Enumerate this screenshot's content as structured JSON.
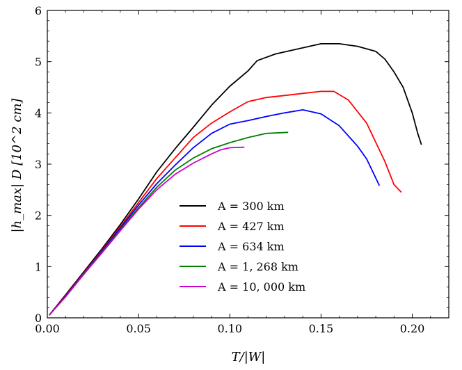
{
  "chart_data": {
    "type": "line",
    "xlabel": "T/|W|",
    "ylabel": "|h_max| D [10^2 cm]",
    "xlim": [
      0.0,
      0.22
    ],
    "ylim": [
      0,
      6
    ],
    "x_ticks": [
      "0.00",
      "0.05",
      "0.10",
      "0.15",
      "0.20"
    ],
    "x_tick_values": [
      0.0,
      0.05,
      0.1,
      0.15,
      0.2
    ],
    "y_ticks": [
      "0",
      "1",
      "2",
      "3",
      "4",
      "5",
      "6"
    ],
    "y_tick_values": [
      0,
      1,
      2,
      3,
      4,
      5,
      6
    ],
    "legend_position": "lower-center",
    "series": [
      {
        "name": "A = 300 km",
        "color": "#000000",
        "x": [
          0.001,
          0.01,
          0.02,
          0.03,
          0.04,
          0.05,
          0.06,
          0.07,
          0.08,
          0.09,
          0.1,
          0.11,
          0.115,
          0.125,
          0.14,
          0.15,
          0.16,
          0.17,
          0.18,
          0.185,
          0.19,
          0.195,
          0.2,
          0.203,
          0.205
        ],
        "values": [
          0.05,
          0.45,
          0.9,
          1.35,
          1.82,
          2.32,
          2.85,
          3.3,
          3.72,
          4.15,
          4.52,
          4.82,
          5.02,
          5.15,
          5.27,
          5.35,
          5.35,
          5.3,
          5.2,
          5.05,
          4.8,
          4.5,
          4.0,
          3.6,
          3.38
        ]
      },
      {
        "name": "A = 427 km",
        "color": "#ff0000",
        "x": [
          0.001,
          0.01,
          0.02,
          0.03,
          0.04,
          0.05,
          0.06,
          0.07,
          0.08,
          0.09,
          0.1,
          0.11,
          0.12,
          0.13,
          0.14,
          0.15,
          0.157,
          0.165,
          0.175,
          0.185,
          0.19,
          0.194
        ],
        "values": [
          0.05,
          0.43,
          0.88,
          1.32,
          1.78,
          2.25,
          2.72,
          3.12,
          3.52,
          3.8,
          4.02,
          4.22,
          4.3,
          4.34,
          4.38,
          4.42,
          4.42,
          4.25,
          3.8,
          3.05,
          2.6,
          2.45
        ]
      },
      {
        "name": "A = 634 km",
        "color": "#0000ff",
        "x": [
          0.001,
          0.01,
          0.02,
          0.03,
          0.04,
          0.05,
          0.06,
          0.07,
          0.08,
          0.09,
          0.1,
          0.11,
          0.12,
          0.13,
          0.14,
          0.15,
          0.16,
          0.17,
          0.175,
          0.182
        ],
        "values": [
          0.05,
          0.42,
          0.87,
          1.3,
          1.75,
          2.2,
          2.62,
          2.98,
          3.32,
          3.6,
          3.78,
          3.85,
          3.93,
          4.0,
          4.06,
          3.98,
          3.75,
          3.35,
          3.1,
          2.58
        ]
      },
      {
        "name": "A = 1, 268 km",
        "color": "#008000",
        "x": [
          0.001,
          0.01,
          0.02,
          0.03,
          0.04,
          0.05,
          0.06,
          0.07,
          0.08,
          0.09,
          0.1,
          0.11,
          0.12,
          0.132
        ],
        "values": [
          0.05,
          0.41,
          0.86,
          1.28,
          1.72,
          2.15,
          2.55,
          2.88,
          3.12,
          3.3,
          3.42,
          3.52,
          3.6,
          3.62
        ]
      },
      {
        "name": "A = 10, 000 km",
        "color": "#cc00cc",
        "x": [
          0.001,
          0.01,
          0.02,
          0.03,
          0.04,
          0.05,
          0.06,
          0.07,
          0.08,
          0.09,
          0.095,
          0.1,
          0.108
        ],
        "values": [
          0.05,
          0.41,
          0.85,
          1.27,
          1.7,
          2.12,
          2.5,
          2.8,
          3.02,
          3.2,
          3.28,
          3.32,
          3.33
        ]
      }
    ]
  }
}
